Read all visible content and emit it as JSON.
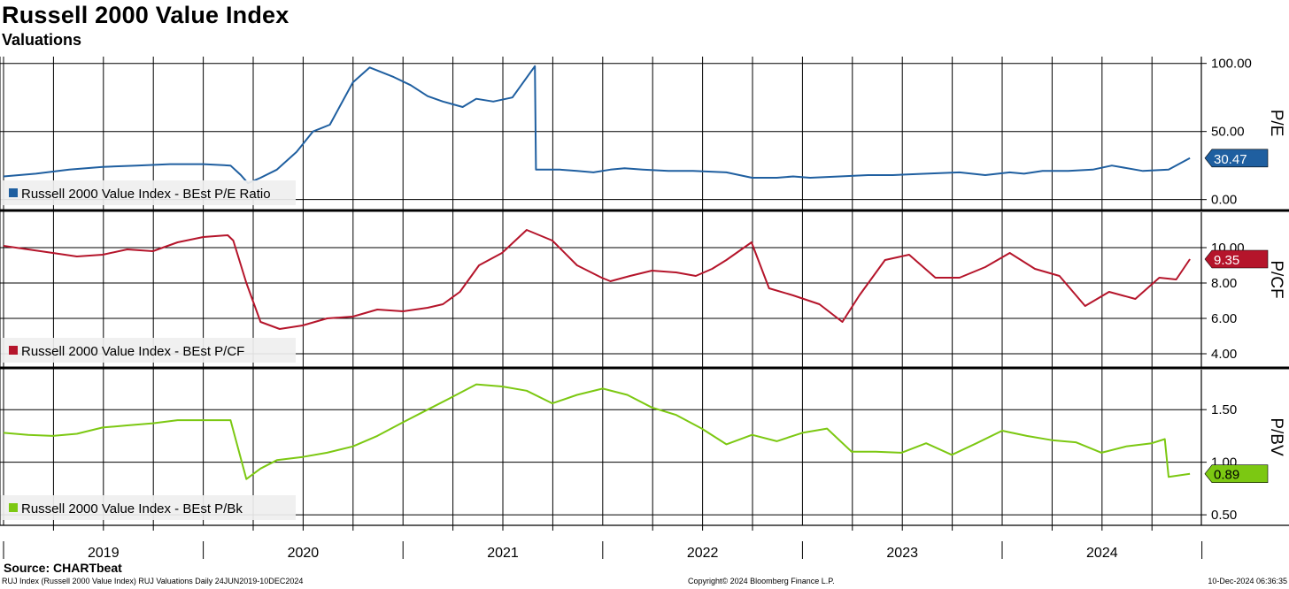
{
  "header": {
    "title": "Russell 2000 Value Index",
    "subtitle": "Valuations"
  },
  "footer": {
    "source": "Source: CHARTbeat",
    "left": "RUJ Index (Russell 2000 Value Index) RUJ Valuations  Daily 24JUN2019-10DEC2024",
    "center": "Copyright© 2024 Bloomberg Finance L.P.",
    "right": "10-Dec-2024 06:36:35"
  },
  "colors": {
    "pe": "#1f5fa0",
    "pcf": "#b5152b",
    "pb": "#7cc812",
    "grid": "#000000"
  },
  "chart_data": {
    "type": "line",
    "x_range": [
      "2019-01-01",
      "2024-12-31"
    ],
    "x_ticks": [
      "2019",
      "2020",
      "2021",
      "2022",
      "2023",
      "2024"
    ],
    "panels": [
      {
        "key": "pe",
        "ylabel": "P/E",
        "ylim": [
          -8,
          105
        ],
        "yticks": [
          "100.00",
          "50.00",
          "0.00"
        ],
        "ytick_values": [
          100,
          50,
          0
        ],
        "series": [
          {
            "name": "Russell 2000 Value Index - BEst P/E Ratio",
            "last_value": 30.47,
            "x": [
              "2019-01-01",
              "2019-03-01",
              "2019-05-01",
              "2019-07-01",
              "2019-09-01",
              "2019-11-01",
              "2020-01-01",
              "2020-02-20",
              "2020-03-10",
              "2020-03-23",
              "2020-04-15",
              "2020-05-15",
              "2020-06-20",
              "2020-07-20",
              "2020-08-20",
              "2020-10-01",
              "2020-11-01",
              "2020-12-15",
              "2021-01-15",
              "2021-02-15",
              "2021-03-15",
              "2021-04-20",
              "2021-05-15",
              "2021-06-15",
              "2021-07-20",
              "2021-08-30",
              "2021-09-01",
              "2021-10-15",
              "2021-11-15",
              "2021-12-15",
              "2022-01-15",
              "2022-02-10",
              "2022-03-15",
              "2022-05-01",
              "2022-06-15",
              "2022-08-15",
              "2022-10-01",
              "2022-11-15",
              "2022-12-15",
              "2023-01-15",
              "2023-03-10",
              "2023-05-01",
              "2023-06-15",
              "2023-08-15",
              "2023-10-15",
              "2023-12-01",
              "2024-01-15",
              "2024-02-10",
              "2024-03-15",
              "2024-05-01",
              "2024-06-15",
              "2024-07-20",
              "2024-09-15",
              "2024-11-01",
              "2024-12-10"
            ],
            "values": [
              17,
              19,
              22,
              24,
              25,
              26,
              26,
              25,
              18,
              12,
              16,
              22,
              35,
              50,
              55,
              86,
              97,
              90,
              84,
              76,
              72,
              68,
              74,
              72,
              75,
              98,
              22,
              22,
              21,
              20,
              22,
              23,
              22,
              21,
              21,
              20,
              16,
              16,
              17,
              16,
              17,
              18,
              18,
              19,
              20,
              18,
              20,
              19,
              21,
              21,
              22,
              25,
              21,
              22,
              30.47
            ]
          }
        ]
      },
      {
        "key": "pcf",
        "ylabel": "P/CF",
        "ylim": [
          3.2,
          12
        ],
        "yticks": [
          "10.00",
          "8.00",
          "6.00",
          "4.00"
        ],
        "ytick_values": [
          10,
          8,
          6,
          4
        ],
        "series": [
          {
            "name": "Russell 2000 Value Index - BEst P/CF",
            "last_value": 9.35,
            "x": [
              "2019-01-01",
              "2019-02-15",
              "2019-04-01",
              "2019-05-15",
              "2019-07-01",
              "2019-08-15",
              "2019-10-01",
              "2019-11-15",
              "2020-01-01",
              "2020-02-15",
              "2020-02-25",
              "2020-03-20",
              "2020-04-15",
              "2020-05-20",
              "2020-07-01",
              "2020-08-15",
              "2020-10-01",
              "2020-11-15",
              "2021-01-01",
              "2021-02-15",
              "2021-03-15",
              "2021-04-15",
              "2021-05-20",
              "2021-07-01",
              "2021-08-15",
              "2021-10-01",
              "2021-11-15",
              "2021-12-30",
              "2022-01-15",
              "2022-02-20",
              "2022-04-01",
              "2022-05-15",
              "2022-06-20",
              "2022-07-20",
              "2022-08-15",
              "2022-09-30",
              "2022-11-01",
              "2022-12-15",
              "2023-02-01",
              "2023-03-15",
              "2023-04-15",
              "2023-06-01",
              "2023-07-15",
              "2023-09-01",
              "2023-10-15",
              "2023-12-01",
              "2024-01-15",
              "2024-03-01",
              "2024-04-15",
              "2024-06-01",
              "2024-07-15",
              "2024-09-01",
              "2024-10-15",
              "2024-11-15",
              "2024-12-10"
            ],
            "values": [
              10.1,
              9.9,
              9.7,
              9.5,
              9.6,
              9.9,
              9.8,
              10.3,
              10.6,
              10.7,
              10.4,
              8.0,
              5.8,
              5.4,
              5.6,
              6.0,
              6.1,
              6.5,
              6.4,
              6.6,
              6.8,
              7.5,
              9.0,
              9.7,
              11.0,
              10.4,
              9.0,
              8.3,
              8.1,
              8.4,
              8.7,
              8.6,
              8.4,
              8.8,
              9.3,
              10.3,
              7.7,
              7.3,
              6.8,
              5.8,
              7.3,
              9.3,
              9.6,
              8.3,
              8.3,
              8.9,
              9.7,
              8.8,
              8.4,
              6.7,
              7.5,
              7.1,
              8.3,
              8.2,
              9.35
            ]
          }
        ]
      },
      {
        "key": "pb",
        "ylabel": "P/BV",
        "ylim": [
          0.4,
          1.88
        ],
        "yticks": [
          "1.50",
          "1.00",
          "0.50"
        ],
        "ytick_values": [
          1.5,
          1.0,
          0.5
        ],
        "series": [
          {
            "name": "Russell 2000 Value Index - BEst P/Bk",
            "last_value": 0.89,
            "x": [
              "2019-01-01",
              "2019-02-15",
              "2019-04-01",
              "2019-05-15",
              "2019-07-01",
              "2019-08-15",
              "2019-10-01",
              "2019-11-15",
              "2020-01-01",
              "2020-02-20",
              "2020-03-20",
              "2020-04-15",
              "2020-05-15",
              "2020-07-01",
              "2020-08-15",
              "2020-10-01",
              "2020-11-15",
              "2021-01-01",
              "2021-02-15",
              "2021-04-01",
              "2021-05-15",
              "2021-07-01",
              "2021-08-15",
              "2021-10-01",
              "2021-11-15",
              "2022-01-01",
              "2022-02-15",
              "2022-04-01",
              "2022-05-15",
              "2022-07-01",
              "2022-08-15",
              "2022-10-01",
              "2022-11-15",
              "2023-01-01",
              "2023-02-15",
              "2023-04-01",
              "2023-05-15",
              "2023-07-01",
              "2023-08-15",
              "2023-10-01",
              "2023-11-15",
              "2024-01-01",
              "2024-02-15",
              "2024-04-01",
              "2024-05-15",
              "2024-07-01",
              "2024-08-15",
              "2024-10-01",
              "2024-10-25",
              "2024-11-01",
              "2024-12-10"
            ],
            "values": [
              1.28,
              1.26,
              1.25,
              1.27,
              1.33,
              1.35,
              1.37,
              1.4,
              1.4,
              1.4,
              0.84,
              0.94,
              1.02,
              1.05,
              1.09,
              1.15,
              1.25,
              1.38,
              1.5,
              1.62,
              1.74,
              1.72,
              1.68,
              1.56,
              1.64,
              1.7,
              1.64,
              1.52,
              1.45,
              1.32,
              1.17,
              1.26,
              1.2,
              1.28,
              1.32,
              1.1,
              1.1,
              1.09,
              1.18,
              1.07,
              1.18,
              1.3,
              1.25,
              1.21,
              1.19,
              1.09,
              1.15,
              1.18,
              1.22,
              0.86,
              0.89
            ]
          }
        ]
      }
    ]
  }
}
